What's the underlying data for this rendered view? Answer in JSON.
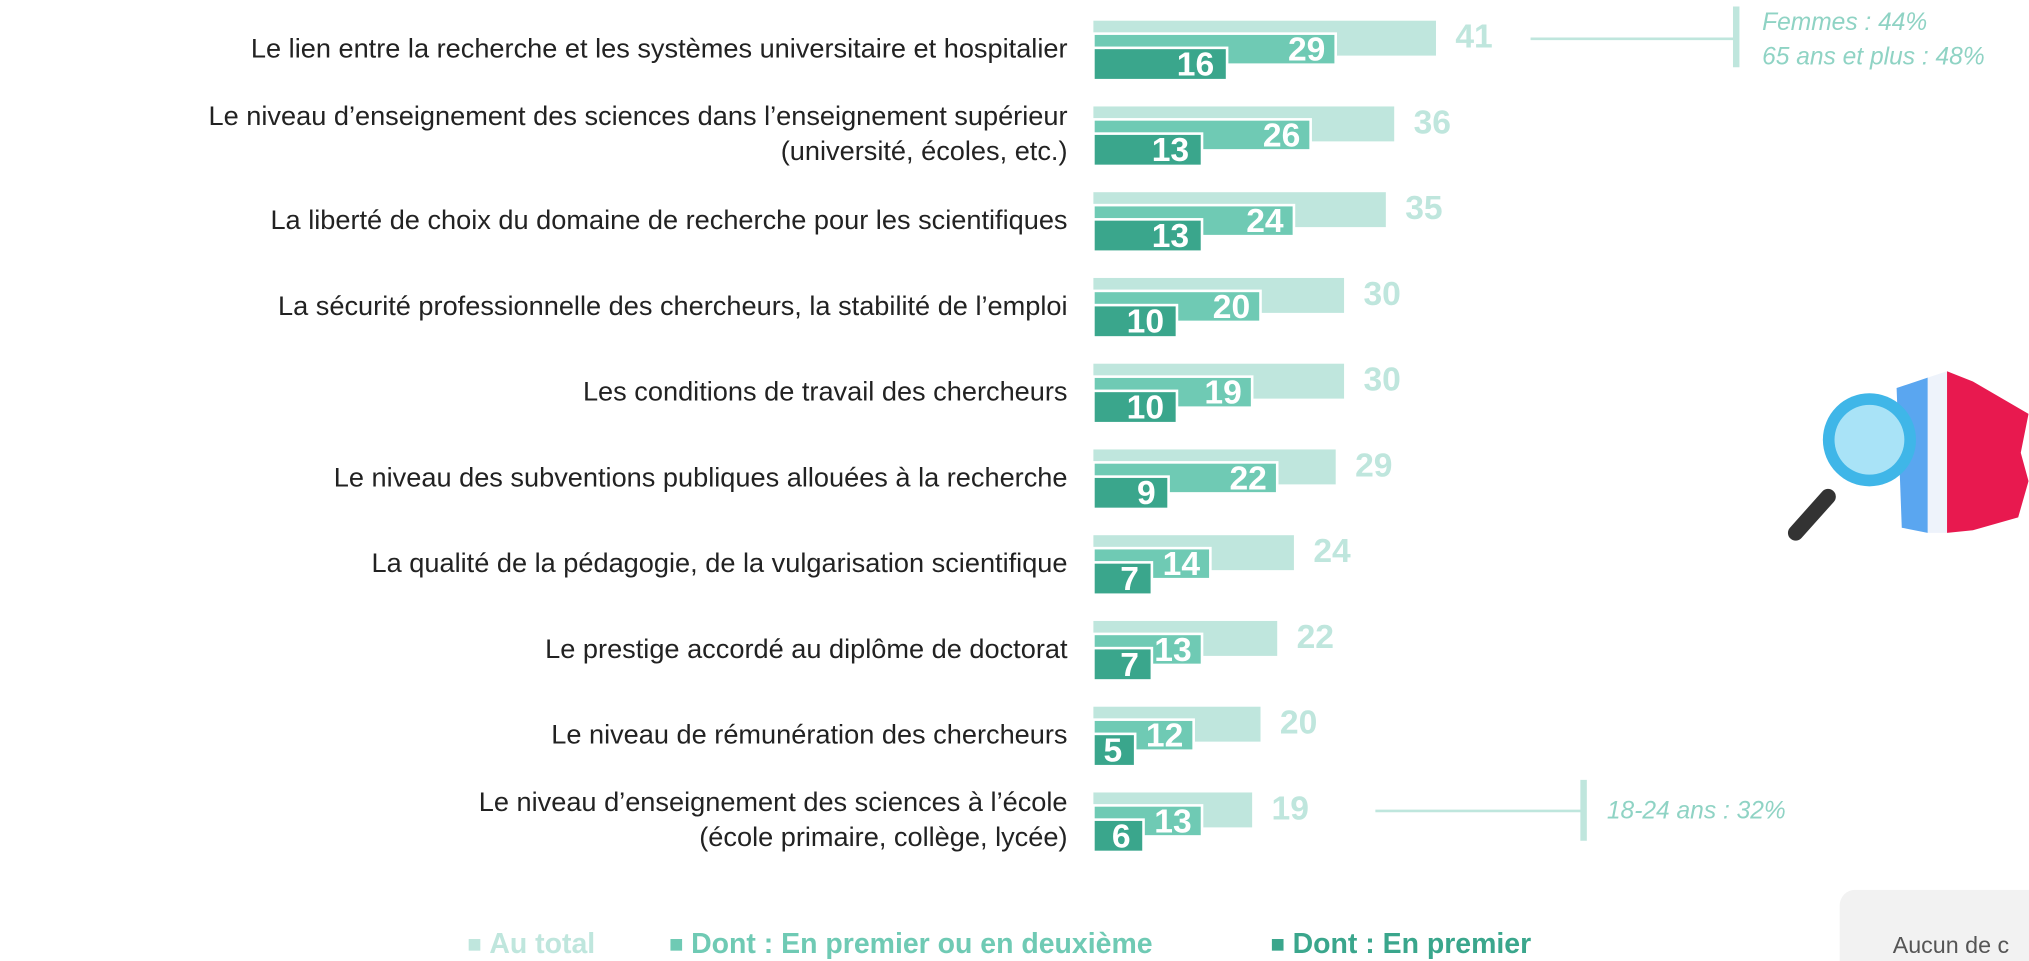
{
  "chart_data": {
    "type": "bar",
    "categories": [
      "Le lien entre la recherche et les systèmes universitaire et hospitalier",
      "Le niveau d’enseignement des sciences dans l’enseignement supérieur (université, écoles, etc.)",
      "La liberté de choix du domaine de recherche pour les scientifiques",
      "La sécurité professionnelle des chercheurs, la stabilité de l’emploi",
      "Les conditions de travail des chercheurs",
      "Le niveau des subventions publiques allouées à la recherche",
      "La qualité de la pédagogie, de la vulgarisation scientifique",
      "Le prestige accordé au diplôme de doctorat",
      "Le niveau de rémunération des chercheurs",
      "Le niveau d’enseignement des sciences à l’école (école primaire, collège, lycée)"
    ],
    "series": [
      {
        "name": "Au total",
        "color": "#bfe6dd",
        "values": [
          41,
          36,
          35,
          30,
          30,
          29,
          24,
          22,
          20,
          19
        ]
      },
      {
        "name": "Dont : En premier ou en deuxième",
        "color": "#6fcab4",
        "values": [
          29,
          26,
          24,
          20,
          19,
          22,
          14,
          13,
          12,
          13
        ]
      },
      {
        "name": "Dont : En premier",
        "color": "#3aa68c",
        "values": [
          16,
          13,
          13,
          10,
          10,
          9,
          7,
          7,
          5,
          6
        ]
      }
    ],
    "annotations": [
      [
        "Femmes : 44%",
        "65 ans et plus : 48%"
      ],
      [
        "18-24 ans : 32%"
      ]
    ],
    "note": "Aucun de c"
  }
}
